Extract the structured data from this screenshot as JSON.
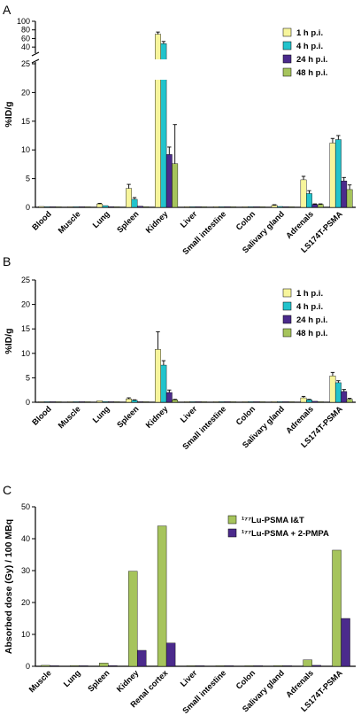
{
  "colors": {
    "h1": "#f7f59c",
    "h4": "#22c3cc",
    "h24": "#4b2a8c",
    "h48": "#a6c45c",
    "iandt": "#a6c45c",
    "pmpa": "#4b2a8c"
  },
  "chart_data": [
    {
      "panel": "A",
      "type": "bar",
      "ylabel": "%ID/g",
      "ylim": [
        0,
        25
      ],
      "yticks": [
        0,
        5,
        10,
        15,
        20,
        25
      ],
      "axis_break": {
        "lower_max": 25,
        "upper_range": [
          30,
          100
        ],
        "upper_ticks": [
          40,
          60,
          80,
          100
        ]
      },
      "categories": [
        "Blood",
        "Muscle",
        "Lung",
        "Spleen",
        "Kidney",
        "Liver",
        "Small intestine",
        "Colon",
        "Salivary gland",
        "Adrenals",
        "LS174T-PSMA"
      ],
      "series": [
        {
          "name": "1 h p.i.",
          "color_key": "h1",
          "values": [
            0.15,
            0.08,
            0.6,
            3.3,
            70,
            0.1,
            0.12,
            0.1,
            0.35,
            4.8,
            11.2
          ],
          "errors": [
            0.05,
            0.03,
            0.1,
            0.7,
            5,
            0.05,
            0.03,
            0.03,
            0.1,
            0.6,
            0.8
          ]
        },
        {
          "name": "4 h p.i.",
          "color_key": "h4",
          "values": [
            0.05,
            0.03,
            0.3,
            1.4,
            48,
            0.05,
            0.05,
            0.05,
            0.15,
            2.4,
            11.8
          ],
          "errors": [
            0.02,
            0.01,
            0.05,
            0.3,
            5,
            0.02,
            0.02,
            0.02,
            0.05,
            0.5,
            0.7
          ]
        },
        {
          "name": "24 h p.i.",
          "color_key": "h24",
          "values": [
            0.02,
            0.02,
            0.1,
            0.2,
            9.2,
            0.03,
            0.02,
            0.02,
            0.05,
            0.5,
            4.6
          ],
          "errors": [
            0.01,
            0.01,
            0.02,
            0.05,
            1.3,
            0.01,
            0.01,
            0.01,
            0.02,
            0.1,
            0.6
          ]
        },
        {
          "name": "48 h p.i.",
          "color_key": "h48",
          "values": [
            0.01,
            0.01,
            0.05,
            0.1,
            7.6,
            0.02,
            0.01,
            0.01,
            0.03,
            0.5,
            3.1
          ],
          "errors": [
            0.01,
            0.01,
            0.02,
            0.03,
            6.8,
            0.01,
            0.01,
            0.01,
            0.01,
            0.1,
            0.8
          ]
        }
      ]
    },
    {
      "panel": "B",
      "type": "bar",
      "ylabel": "%ID/g",
      "ylim": [
        0,
        25
      ],
      "yticks": [
        0,
        5,
        10,
        15,
        20,
        25
      ],
      "categories": [
        "Blood",
        "Muscle",
        "Lung",
        "Spleen",
        "Kidney",
        "Liver",
        "Small intestine",
        "Colon",
        "Salivary gland",
        "Adrenals",
        "LS174T-PSMA"
      ],
      "series": [
        {
          "name": "1 h p.i.",
          "color_key": "h1",
          "values": [
            0.1,
            0.05,
            0.3,
            0.7,
            10.8,
            0.08,
            0.08,
            0.05,
            0.15,
            0.9,
            5.4
          ],
          "errors": [
            0.03,
            0.02,
            0.05,
            0.2,
            3.6,
            0.02,
            0.02,
            0.02,
            0.05,
            0.3,
            0.7
          ]
        },
        {
          "name": "4 h p.i.",
          "color_key": "h4",
          "values": [
            0.04,
            0.02,
            0.15,
            0.4,
            7.6,
            0.04,
            0.04,
            0.03,
            0.08,
            0.5,
            4.0
          ],
          "errors": [
            0.02,
            0.01,
            0.03,
            0.1,
            0.9,
            0.01,
            0.01,
            0.01,
            0.02,
            0.1,
            0.4
          ]
        },
        {
          "name": "24 h p.i.",
          "color_key": "h24",
          "values": [
            0.02,
            0.01,
            0.05,
            0.1,
            2.0,
            0.02,
            0.02,
            0.01,
            0.03,
            0.2,
            2.2
          ],
          "errors": [
            0.01,
            0.01,
            0.01,
            0.03,
            0.5,
            0.01,
            0.01,
            0.01,
            0.01,
            0.05,
            0.4
          ]
        },
        {
          "name": "48 h p.i.",
          "color_key": "h48",
          "values": [
            0.01,
            0.01,
            0.03,
            0.05,
            0.5,
            0.01,
            0.01,
            0.01,
            0.02,
            0.1,
            0.6
          ],
          "errors": [
            0.01,
            0.01,
            0.01,
            0.02,
            0.1,
            0.01,
            0.01,
            0.01,
            0.01,
            0.03,
            0.2
          ]
        }
      ]
    },
    {
      "panel": "C",
      "type": "bar",
      "ylabel": "Absorbed dose (Gy) / 100 MBq",
      "ylim": [
        0,
        50
      ],
      "yticks": [
        0,
        10,
        20,
        30,
        40,
        50
      ],
      "categories": [
        "Muscle",
        "Lung",
        "Spleen",
        "Kidney",
        "Renal cortex",
        "Liver",
        "Small intestine",
        "Colon",
        "Salivary gland",
        "Adrenals",
        "LS174T-PSMA"
      ],
      "series": [
        {
          "name": "¹⁷⁷Lu-PSMA I&T",
          "color_key": "iandt",
          "values": [
            0.3,
            0.2,
            1.0,
            29.8,
            44.0,
            0.1,
            0.1,
            0.1,
            0.2,
            2.0,
            36.4
          ]
        },
        {
          "name": "¹⁷⁷Lu-PSMA + 2-PMPA",
          "color_key": "pmpa",
          "values": [
            0.05,
            0.05,
            0.2,
            5.0,
            7.3,
            0.05,
            0.05,
            0.05,
            0.05,
            0.3,
            15.0
          ]
        }
      ]
    }
  ]
}
